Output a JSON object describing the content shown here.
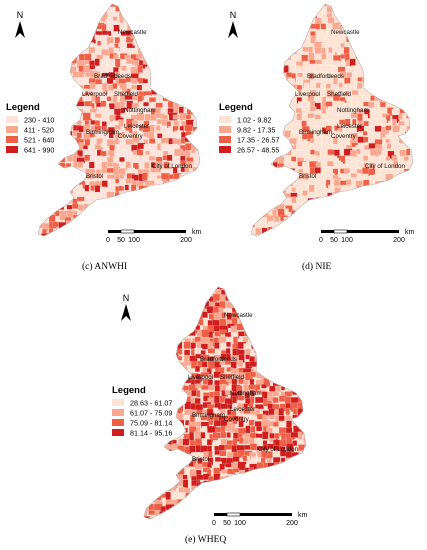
{
  "panels": [
    {
      "id": "c",
      "caption": "(c) ANWHI",
      "legend_title": "Legend",
      "legend": [
        {
          "label": "230 - 410",
          "color": "#fde3d9"
        },
        {
          "label": "411 - 520",
          "color": "#f9a78f"
        },
        {
          "label": "521 - 640",
          "color": "#ef5f45"
        },
        {
          "label": "641 - 990",
          "color": "#d01d1d"
        }
      ],
      "cities": [
        "Newcastle",
        "Bradford",
        "Leeds",
        "Liverpool",
        "Sheffield",
        "Nottingham",
        "Leicester",
        "Birmingham",
        "Coventry",
        "Bristol",
        "City of London"
      ],
      "scale": {
        "ticks": [
          "0",
          "50",
          "100",
          "200"
        ],
        "unit": "km"
      },
      "north": "N"
    },
    {
      "id": "d",
      "caption": "(d) NIE",
      "legend_title": "Legend",
      "legend": [
        {
          "label": "1.02 - 9.82",
          "color": "#fde3d3"
        },
        {
          "label": "9.82 - 17.35",
          "color": "#f9a78f"
        },
        {
          "label": "17.35 - 26.57",
          "color": "#ef5f45"
        },
        {
          "label": "26.57 - 48.55",
          "color": "#d01d1d"
        }
      ],
      "cities": [
        "Newcastle",
        "Bradford",
        "Leeds",
        "Liverpool",
        "Sheffield",
        "Nottingham",
        "Leicester",
        "Birmingham",
        "Coventry",
        "Bristol",
        "City of London"
      ],
      "scale": {
        "ticks": [
          "0",
          "50",
          "100",
          "200"
        ],
        "unit": "km"
      },
      "north": "N"
    },
    {
      "id": "e",
      "caption": "(e) WHEQ",
      "legend_title": "Legend",
      "legend": [
        {
          "label": "28.63 - 61.07",
          "color": "#fde3d3"
        },
        {
          "label": "61.07 - 75.09",
          "color": "#f9a78f"
        },
        {
          "label": "75.09 - 81.14",
          "color": "#ef5f45"
        },
        {
          "label": "81.14 - 95.16",
          "color": "#d01d1d"
        }
      ],
      "cities": [
        "Newcastle",
        "Bradford",
        "Leeds",
        "Liverpool",
        "Sheffield",
        "Nottingham",
        "Leicester",
        "Birmingham",
        "Coventry",
        "Bristol",
        "City of London"
      ],
      "scale": {
        "ticks": [
          "0",
          "50",
          "100",
          "200"
        ],
        "unit": "km"
      },
      "north": "N"
    }
  ]
}
